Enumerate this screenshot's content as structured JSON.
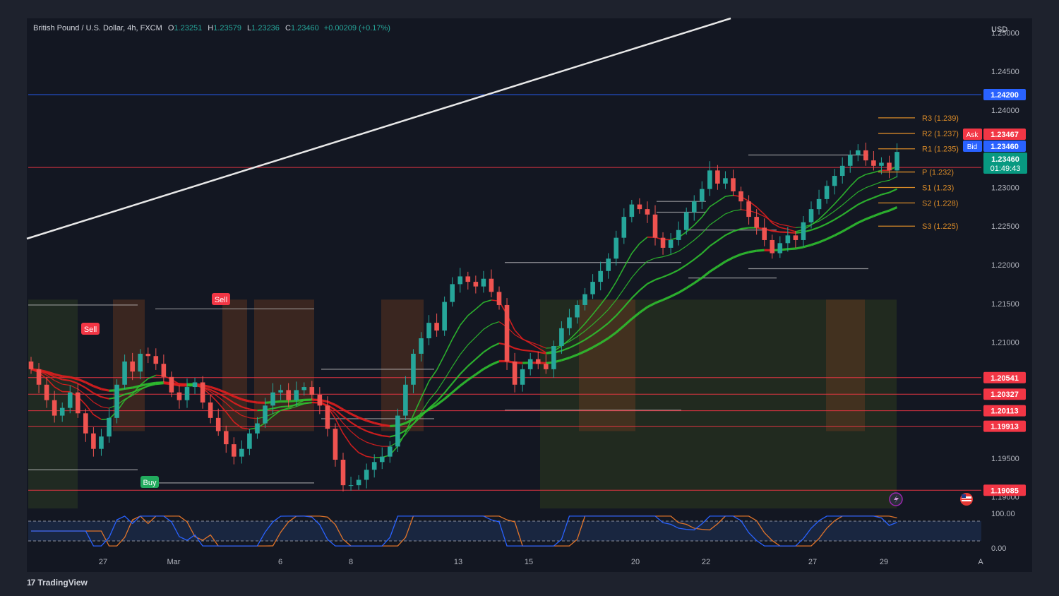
{
  "header": {
    "symbol": "British Pound / U.S. Dollar, 4h, FXCM",
    "o_label": "O",
    "o_value": "1.23251",
    "h_label": "H",
    "h_value": "1.23579",
    "l_label": "L",
    "l_value": "1.23236",
    "c_label": "C",
    "c_value": "1.23460",
    "change": "+0.00209 (+0.17%)"
  },
  "footer": {
    "brand": "TradingView",
    "logo_glyph": "17"
  },
  "colors": {
    "background": "#131722",
    "frame": "#1e222d",
    "up": "#26a69a",
    "down": "#ef5350",
    "ema_green": "#2fbf2f",
    "ema_red": "#e01e1e",
    "level_red": "#f23645",
    "level_blue": "#2962ff",
    "pivot_orange": "#d88a28"
  },
  "chart_data": {
    "type": "candlestick",
    "symbol": "GBPUSD",
    "timeframe": "4h",
    "y_axis": {
      "currency": "USD",
      "range": [
        1.188,
        1.255
      ],
      "ticks": [
        "1.25000",
        "1.24500",
        "1.24000",
        "1.23000",
        "1.22500",
        "1.22000",
        "1.21500",
        "1.21000",
        "1.19500",
        "1.19000"
      ]
    },
    "x_axis": {
      "labels": [
        "27",
        "Mar",
        "6",
        "8",
        "13",
        "15",
        "20",
        "22",
        "27",
        "29",
        "A"
      ]
    },
    "horizontal_levels": [
      {
        "label": "1.24200",
        "value": 1.242,
        "color": "#2962ff"
      },
      {
        "label": "1.23259",
        "value": 1.23259,
        "color": "#f23645"
      },
      {
        "label": "1.20541",
        "value": 1.20541,
        "color": "#f23645"
      },
      {
        "label": "1.20327",
        "value": 1.20327,
        "color": "#f23645"
      },
      {
        "label": "1.20113",
        "value": 1.20113,
        "color": "#f23645"
      },
      {
        "label": "1.19913",
        "value": 1.19913,
        "color": "#f23645"
      },
      {
        "label": "1.19085",
        "value": 1.19085,
        "color": "#f23645"
      }
    ],
    "price_tags": [
      {
        "label": "Ask",
        "value": "1.23467",
        "color": "#f23645"
      },
      {
        "label": "Bid",
        "value": "1.23460",
        "color": "#2962ff"
      },
      {
        "label": "",
        "value": "1.23460",
        "countdown": "01:49:43",
        "color": "#089981"
      }
    ],
    "pivots": [
      {
        "label": "R3 (1.239)",
        "value": 1.239
      },
      {
        "label": "R2 (1.237)",
        "value": 1.237
      },
      {
        "label": "R1 (1.235)",
        "value": 1.235
      },
      {
        "label": "P (1.232)",
        "value": 1.232
      },
      {
        "label": "S1 (1.23)",
        "value": 1.23
      },
      {
        "label": "S2 (1.228)",
        "value": 1.228
      },
      {
        "label": "S3 (1.225)",
        "value": 1.225
      }
    ],
    "signals": [
      {
        "label": "Sell",
        "type": "sell"
      },
      {
        "label": "Sell",
        "type": "sell"
      },
      {
        "label": "Buy",
        "type": "buy"
      }
    ],
    "closes": [
      1.2065,
      1.2045,
      1.2025,
      1.2005,
      1.2015,
      1.2035,
      1.2008,
      1.1982,
      1.1962,
      1.1978,
      1.2002,
      1.2045,
      1.2075,
      1.2062,
      1.2085,
      1.2082,
      1.2072,
      1.2055,
      1.2035,
      1.2025,
      1.2042,
      1.2048,
      1.2022,
      1.2002,
      1.1985,
      1.1968,
      1.1952,
      1.1962,
      1.1982,
      1.1995,
      1.2018,
      1.2035,
      1.2038,
      1.2025,
      1.2038,
      1.2042,
      1.2032,
      1.2018,
      1.1988,
      1.1948,
      1.1915,
      1.1915,
      1.1922,
      1.1935,
      1.1945,
      1.1952,
      1.1965,
      1.2005,
      1.2045,
      1.2085,
      1.2105,
      1.2125,
      1.2115,
      1.2152,
      1.2175,
      1.2185,
      1.2178,
      1.2172,
      1.2182,
      1.2165,
      1.2148,
      1.2075,
      1.2045,
      1.2065,
      1.2078,
      1.2072,
      1.2065,
      1.2095,
      1.2118,
      1.2132,
      1.2148,
      1.2162,
      1.2178,
      1.2192,
      1.2208,
      1.2235,
      1.2262,
      1.2278,
      1.2272,
      1.2265,
      1.2235,
      1.2222,
      1.2232,
      1.2245,
      1.2268,
      1.2282,
      1.2298,
      1.2322,
      1.2305,
      1.2312,
      1.2295,
      1.2282,
      1.2262,
      1.2248,
      1.2232,
      1.2215,
      1.2228,
      1.2238,
      1.2232,
      1.2255,
      1.2272,
      1.2285,
      1.2302,
      1.2315,
      1.2328,
      1.2342,
      1.2348,
      1.2335,
      1.2328,
      1.2332,
      1.2322,
      1.2346
    ],
    "oscillator": {
      "ticks": [
        "100.00",
        "0.00"
      ],
      "range": [
        0,
        100
      ]
    }
  }
}
